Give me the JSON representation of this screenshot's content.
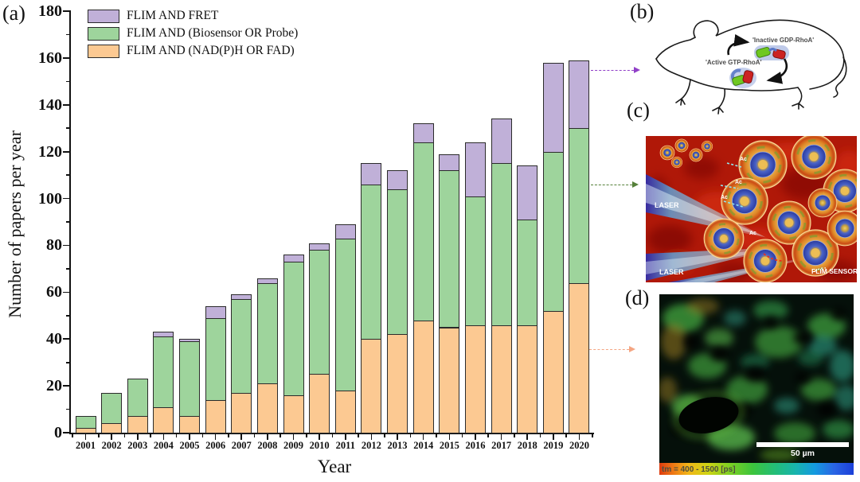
{
  "figure": {
    "panel_a_label": "(a)",
    "panel_b_label": "(b)",
    "panel_c_label": "(c)",
    "panel_d_label": "(d)"
  },
  "chart_data": {
    "type": "bar",
    "stacked": true,
    "title": "",
    "xlabel": "Year",
    "ylabel": "Number of papers per year",
    "ylim": [
      0,
      180
    ],
    "ytick_major_step": 20,
    "ytick_minor_step": 10,
    "grid": false,
    "legend_position": "top-left-inside",
    "bar_border_color": "#2b2b2b",
    "categories": [
      "2001",
      "2002",
      "2003",
      "2004",
      "2005",
      "2006",
      "2007",
      "2008",
      "2009",
      "2010",
      "2011",
      "2012",
      "2013",
      "2014",
      "2015",
      "2016",
      "2017",
      "2018",
      "2019",
      "2020"
    ],
    "series": [
      {
        "name": "FLIM AND (NAD(P)H OR FAD)",
        "color": "#fcc992",
        "values": [
          2,
          4,
          7,
          11,
          7,
          14,
          17,
          21,
          16,
          25,
          18,
          40,
          42,
          48,
          45,
          46,
          46,
          46,
          52,
          64
        ]
      },
      {
        "name": "FLIM AND (Biosensor OR Probe)",
        "color": "#9ed49c",
        "values": [
          5,
          13,
          16,
          30,
          32,
          35,
          40,
          43,
          57,
          53,
          65,
          66,
          62,
          76,
          67,
          55,
          69,
          45,
          68,
          66
        ]
      },
      {
        "name": "FLIM AND FRET",
        "color": "#c0b0d8",
        "values": [
          0,
          0,
          0,
          2,
          1,
          5,
          2,
          2,
          3,
          3,
          6,
          9,
          8,
          8,
          7,
          23,
          19,
          23,
          38,
          29
        ]
      }
    ],
    "totals": [
      7,
      17,
      23,
      43,
      40,
      54,
      59,
      66,
      76,
      81,
      89,
      115,
      112,
      132,
      119,
      124,
      134,
      114,
      158,
      159
    ],
    "legend_order_top_to_bottom": [
      "FLIM AND FRET",
      "FLIM AND (Biosensor OR Probe)",
      "FLIM AND (NAD(P)H OR FAD)"
    ]
  },
  "panel_b": {
    "inactive_label": "'Inactive GDP-RhoA'",
    "active_label": "'Active GTP-RhoA'"
  },
  "panel_c": {
    "laser_label": "LASER",
    "sensor_label": "FLIM SENSOR",
    "ac_label": "Ac"
  },
  "panel_d": {
    "scalebar_label": "50 µm",
    "lifetime_label": "tm = 400 - 1500 [ps]"
  },
  "connectors": {
    "to_b_color": "#9140c8",
    "to_c_color": "#55803a",
    "to_d_color": "#f4a582"
  }
}
